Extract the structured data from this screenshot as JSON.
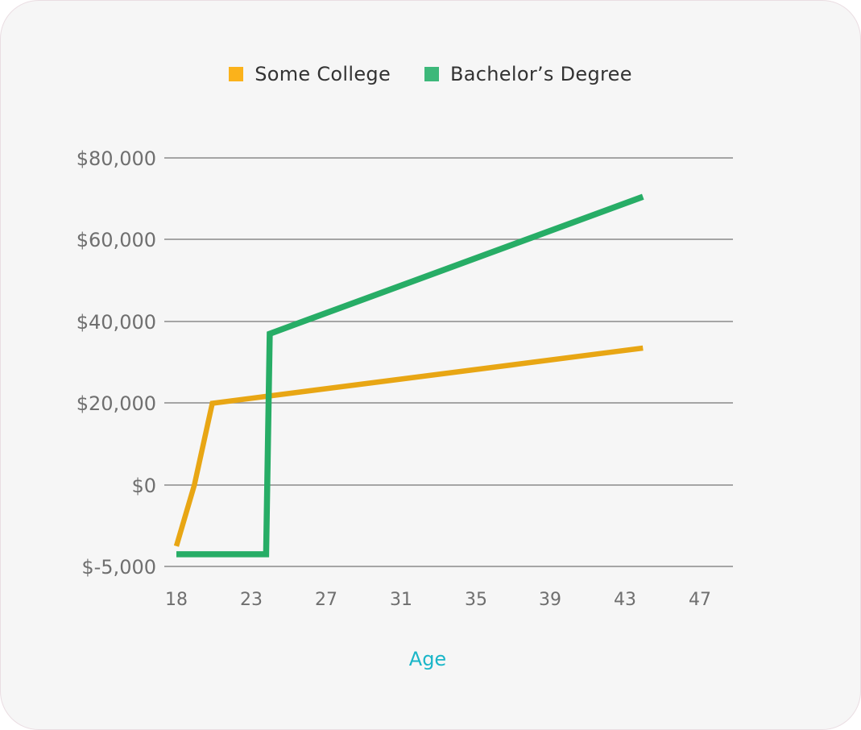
{
  "chart_data": {
    "type": "line",
    "xlabel": "Age",
    "ylabel": "",
    "x_ticks": [
      "18",
      "23",
      "27",
      "31",
      "35",
      "39",
      "43",
      "47"
    ],
    "y_ticks": [
      "$80,000",
      "$60,000",
      "$40,000",
      "$20,000",
      "$0",
      "$-5,000"
    ],
    "grid": true,
    "legend_position": "top-center",
    "series": [
      {
        "name": "Some College",
        "color": "#e8a614",
        "legend_color": "#fbb21b",
        "points": [
          [
            18,
            -15000
          ],
          [
            19,
            0
          ],
          [
            20,
            20000
          ],
          [
            44,
            33500
          ]
        ]
      },
      {
        "name": "Bachelor’s Degree",
        "color": "#27ad66",
        "legend_color": "#3db87a",
        "points": [
          [
            18,
            -17000
          ],
          [
            23,
            -17000
          ],
          [
            23.2,
            37000
          ],
          [
            44,
            70500
          ]
        ]
      }
    ]
  }
}
